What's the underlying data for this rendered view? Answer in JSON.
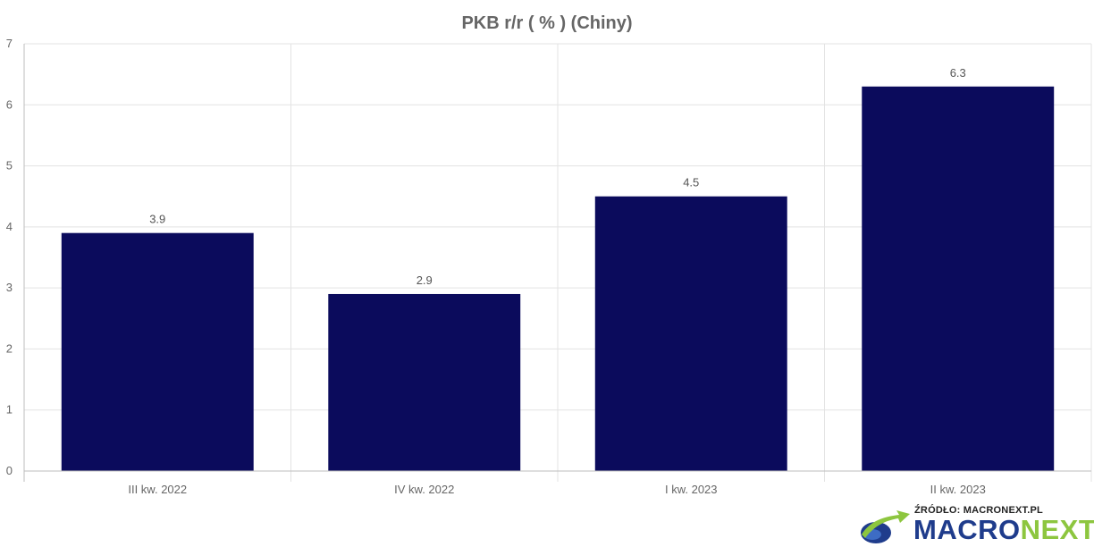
{
  "chart_data": {
    "type": "bar",
    "title": "PKB r/r ( % ) (Chiny)",
    "categories": [
      "III kw. 2022",
      "IV kw. 2022",
      "I kw. 2023",
      "II kw. 2023"
    ],
    "values": [
      3.9,
      2.9,
      4.5,
      6.3
    ],
    "data_labels": [
      "3.9",
      "2.9",
      "4.5",
      "6.3"
    ],
    "y_ticks": [
      "0",
      "1",
      "2",
      "3",
      "4",
      "5",
      "6",
      "7"
    ],
    "ylim": [
      0,
      7
    ],
    "xlabel": "",
    "ylabel": "",
    "grid": true,
    "legend": "none",
    "bar_color": "#0b0b5c"
  },
  "source": {
    "label": "ŹRÓDŁO: MACRONEXT.PL",
    "brand_part1": "MACRO",
    "brand_part2": "NEXT",
    "colors": {
      "brand_blue": "#1f3c8c",
      "brand_green": "#8dc63f"
    }
  }
}
